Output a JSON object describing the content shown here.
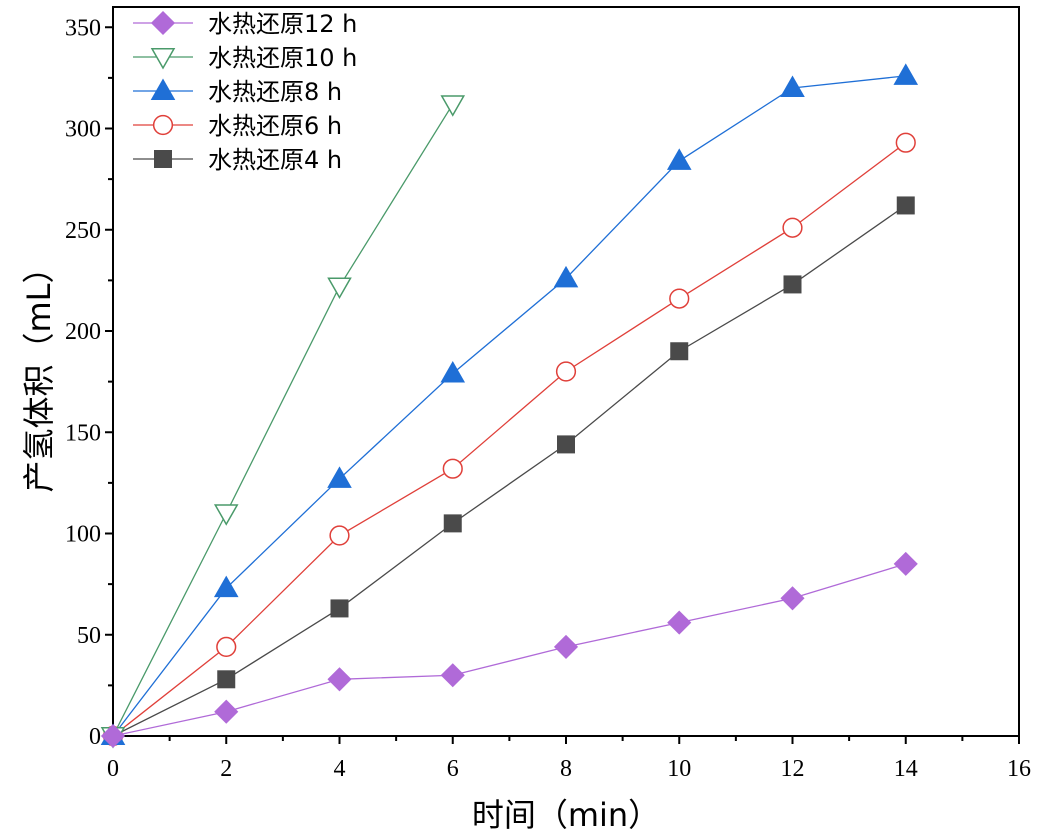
{
  "chart_data": {
    "type": "line",
    "title": "",
    "xlabel": "时间（min）",
    "ylabel": "产氢体积（mL）",
    "xlim": [
      0,
      16
    ],
    "ylim": [
      0,
      360
    ],
    "xticks": [
      0,
      2,
      4,
      6,
      8,
      10,
      12,
      14,
      16
    ],
    "yticks": [
      0,
      50,
      100,
      150,
      200,
      250,
      300,
      350
    ],
    "grid": false,
    "legend_position": "top-left",
    "series": [
      {
        "name": "水热还原12 h",
        "marker": "diamond",
        "filled": true,
        "color": "#b06ad8",
        "x": [
          0,
          2,
          4,
          6,
          8,
          10,
          12,
          14
        ],
        "y": [
          0,
          12,
          28,
          30,
          44,
          56,
          68,
          85
        ]
      },
      {
        "name": "水热还原10 h",
        "marker": "triangle-down",
        "filled": false,
        "color": "#4a9a6a",
        "x": [
          0,
          2,
          4,
          6
        ],
        "y": [
          0,
          110,
          222,
          312
        ]
      },
      {
        "name": "水热还原8 h",
        "marker": "triangle-up",
        "filled": true,
        "color": "#1f6fd6",
        "x": [
          0,
          2,
          4,
          6,
          8,
          10,
          12,
          14
        ],
        "y": [
          0,
          73,
          127,
          179,
          226,
          284,
          320,
          326
        ]
      },
      {
        "name": "水热还原6 h",
        "marker": "circle",
        "filled": false,
        "color": "#e0403a",
        "x": [
          0,
          2,
          4,
          6,
          8,
          10,
          12,
          14
        ],
        "y": [
          0,
          44,
          99,
          132,
          180,
          216,
          251,
          293
        ]
      },
      {
        "name": "水热还原4 h",
        "marker": "square",
        "filled": true,
        "color": "#4a4a4a",
        "x": [
          0,
          2,
          4,
          6,
          8,
          10,
          12,
          14
        ],
        "y": [
          0,
          28,
          63,
          105,
          144,
          190,
          223,
          262
        ]
      }
    ]
  }
}
